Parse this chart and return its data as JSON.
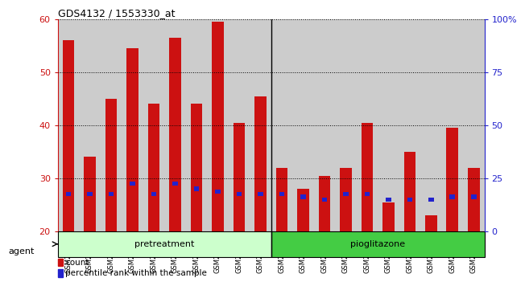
{
  "title": "GDS4132 / 1553330_at",
  "samples": [
    "GSM201542",
    "GSM201543",
    "GSM201544",
    "GSM201545",
    "GSM201829",
    "GSM201830",
    "GSM201831",
    "GSM201832",
    "GSM201833",
    "GSM201834",
    "GSM201835",
    "GSM201836",
    "GSM201837",
    "GSM201838",
    "GSM201839",
    "GSM201840",
    "GSM201841",
    "GSM201842",
    "GSM201843",
    "GSM201844"
  ],
  "count_values": [
    56,
    34,
    45,
    54.5,
    44,
    56.5,
    44,
    59.5,
    40.5,
    45.5,
    32,
    28,
    30.5,
    32,
    40.5,
    25.5,
    35,
    23,
    39.5,
    32
  ],
  "percentile_values": [
    27,
    27,
    27,
    29,
    27,
    29,
    28,
    27.5,
    27,
    27,
    27,
    26.5,
    26,
    27,
    27,
    26,
    26,
    26,
    26.5,
    26.5
  ],
  "pretreatment_count": 10,
  "pioglitazone_count": 10,
  "pretreatment_label": "pretreatment",
  "pioglitazone_label": "pioglitazone",
  "agent_label": "agent",
  "count_color": "#cc1111",
  "percentile_color": "#2222cc",
  "pretreatment_bg": "#ccffcc",
  "pioglitazone_bg": "#44cc44",
  "bar_bg": "#cccccc",
  "plot_bg": "#ffffff",
  "ylim_left": [
    20,
    60
  ],
  "ylim_right": [
    0,
    100
  ],
  "yticks_left": [
    20,
    30,
    40,
    50,
    60
  ],
  "yticks_right": [
    0,
    25,
    50,
    75,
    100
  ],
  "ytick_right_labels": [
    "0",
    "25",
    "50",
    "75",
    "100%"
  ],
  "legend_count": "count",
  "legend_percentile": "percentile rank within the sample",
  "bar_width": 0.55
}
